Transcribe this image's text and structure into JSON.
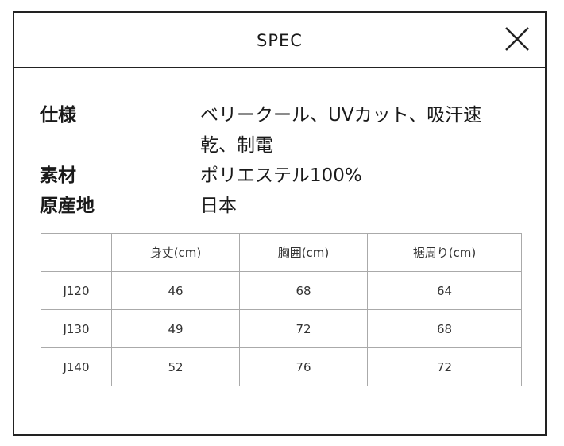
{
  "header": {
    "title": "SPEC",
    "close_icon": "close-x-icon"
  },
  "specs": [
    {
      "label": "仕様",
      "value_line1": "ベリークール、UVカット、吸汗速",
      "value_line2": "乾、制電"
    },
    {
      "label": "素材",
      "value_line1": "ポリエステル100%"
    },
    {
      "label": "原産地",
      "value_line1": "日本"
    }
  ],
  "size_table": {
    "headers": [
      "",
      "身丈(cm)",
      "胸囲(cm)",
      "裾周り(cm)"
    ],
    "rows": [
      [
        "J120",
        "46",
        "68",
        "64"
      ],
      [
        "J130",
        "49",
        "72",
        "68"
      ],
      [
        "J140",
        "52",
        "76",
        "72"
      ]
    ]
  }
}
